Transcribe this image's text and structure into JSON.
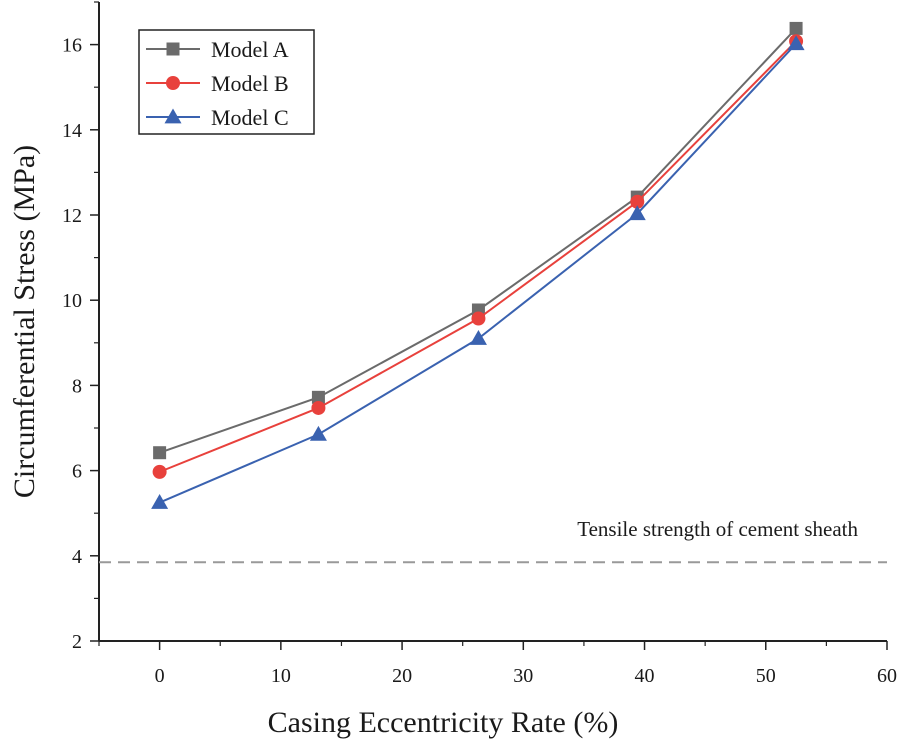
{
  "chart_data": {
    "type": "line",
    "title": "",
    "xlabel": "Casing Eccentricity Rate (%)",
    "ylabel": "Circumferential Stress (MPa)",
    "xlim": [
      -5,
      60
    ],
    "ylim": [
      2,
      17
    ],
    "xticks": [
      0,
      10,
      20,
      30,
      40,
      50,
      60
    ],
    "yticks": [
      2,
      4,
      6,
      8,
      10,
      12,
      14,
      16
    ],
    "xtick_labels": [
      "0",
      "10",
      "20",
      "30",
      "40",
      "50",
      "60"
    ],
    "ytick_labels": [
      "2",
      "4",
      "6",
      "8",
      "10",
      "12",
      "14",
      "16"
    ],
    "x": [
      0,
      13.1,
      26.3,
      39.4,
      52.5
    ],
    "series": [
      {
        "name": "Model A",
        "marker": "square",
        "color": "#6b6b6b",
        "values": [
          6.42,
          7.72,
          9.77,
          12.42,
          16.38
        ]
      },
      {
        "name": "Model B",
        "marker": "circle",
        "color": "#e8413c",
        "values": [
          5.97,
          7.47,
          9.57,
          12.31,
          16.08
        ]
      },
      {
        "name": "Model C",
        "marker": "triangle",
        "color": "#3a62b0",
        "values": [
          5.25,
          6.85,
          9.1,
          12.03,
          16.02
        ]
      }
    ],
    "reference_line": {
      "label": "Tensile strength of cement sheath",
      "value": 3.85,
      "style": "dashed",
      "color": "#999999"
    },
    "legend": {
      "position": "top-left",
      "entries": [
        "Model A",
        "Model B",
        "Model C"
      ]
    },
    "grid": false
  }
}
